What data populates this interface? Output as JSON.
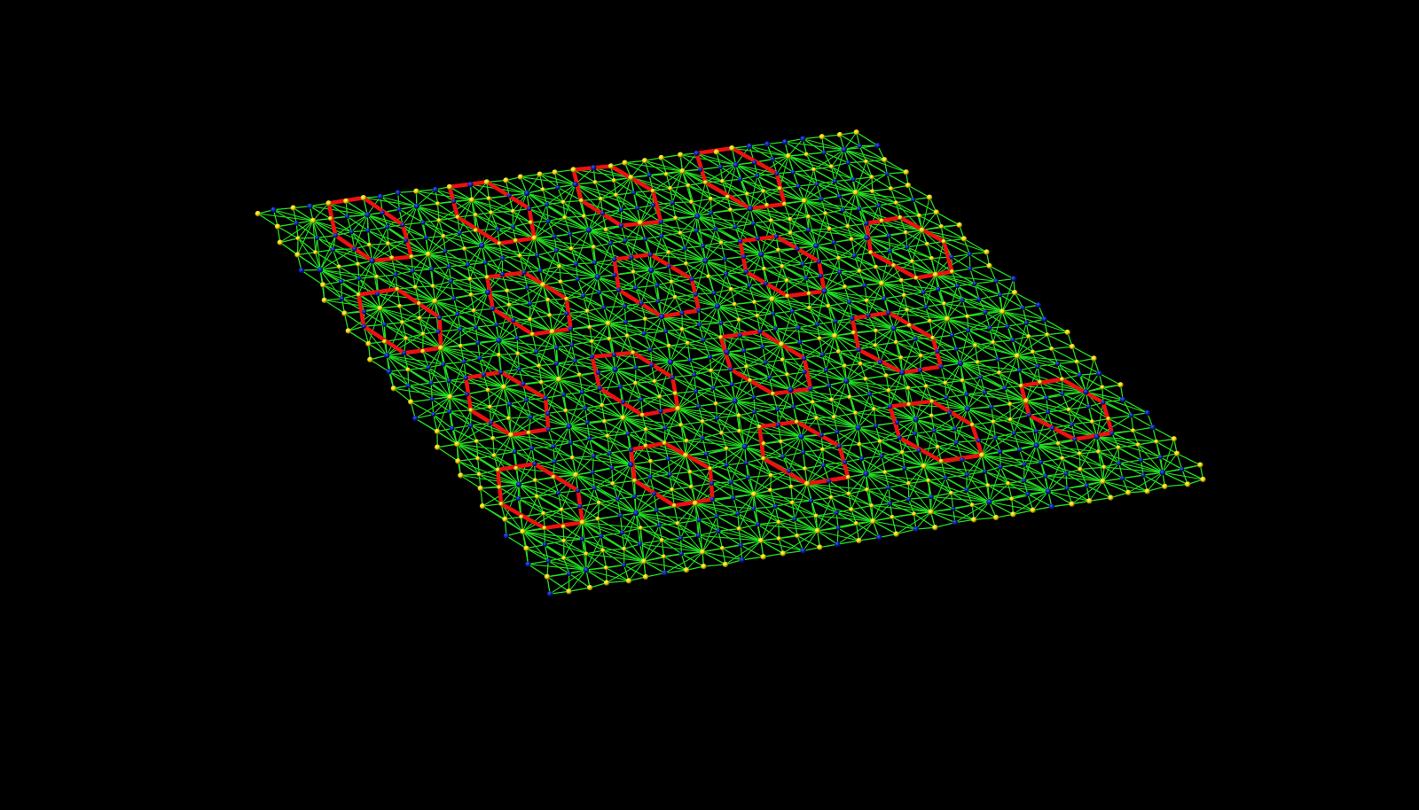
{
  "scene": {
    "background": "#000000",
    "subject": "mesh-lattice",
    "colors": {
      "spoke_edges": "#22dd22",
      "bond_edges": "#ee1111",
      "yellow_nodes": "#f0e000",
      "blue_nodes": "#0a1aa0"
    }
  }
}
